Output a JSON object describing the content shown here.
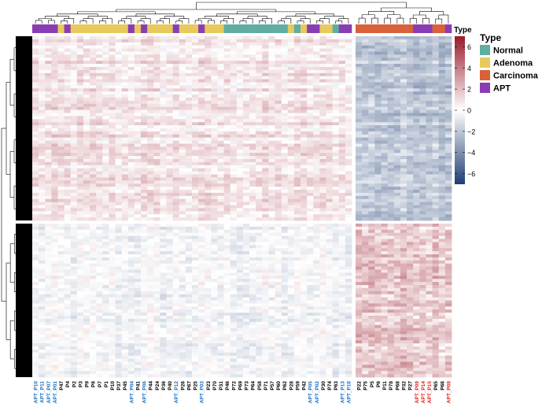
{
  "chart_data": {
    "type": "heatmap",
    "title": "",
    "annotation": {
      "title": "Type",
      "legend": [
        {
          "label": "Normal",
          "color": "#5fada3"
        },
        {
          "label": "Adenoma",
          "color": "#e8c95c"
        },
        {
          "label": "Carcinoma",
          "color": "#d9613a"
        },
        {
          "label": "APT",
          "color": "#8a3db3"
        }
      ]
    },
    "colorbar": {
      "title": "Type",
      "range": [
        -7,
        7
      ],
      "ticks": [
        "6",
        "4",
        "2",
        "0",
        "−2",
        "−4",
        "−6"
      ],
      "low_color": "#1e3d73",
      "mid_color": "#ffffff",
      "high_color": "#9b1b2a"
    },
    "column_groups": [
      {
        "name": "left-cluster",
        "columns": [
          {
            "label": "APT_P10",
            "type": "APT"
          },
          {
            "label": "APT_P11",
            "type": "APT"
          },
          {
            "label": "APT_P07",
            "type": "APT"
          },
          {
            "label": "APT_P01",
            "type": "APT"
          },
          {
            "label": "P47",
            "type": "Adenoma"
          },
          {
            "label": "P4",
            "type": "APT"
          },
          {
            "label": "P2",
            "type": "Adenoma"
          },
          {
            "label": "P3",
            "type": "Adenoma"
          },
          {
            "label": "P9",
            "type": "Adenoma"
          },
          {
            "label": "P8",
            "type": "Adenoma"
          },
          {
            "label": "P7",
            "type": "Adenoma"
          },
          {
            "label": "P1",
            "type": "Adenoma"
          },
          {
            "label": "P10",
            "type": "Adenoma"
          },
          {
            "label": "P37",
            "type": "Adenoma"
          },
          {
            "label": "P45",
            "type": "Adenoma"
          },
          {
            "label": "APT_P04",
            "type": "APT"
          },
          {
            "label": "P41",
            "type": "Adenoma"
          },
          {
            "label": "APT_P06",
            "type": "APT"
          },
          {
            "label": "P44",
            "type": "Adenoma"
          },
          {
            "label": "P24",
            "type": "Adenoma"
          },
          {
            "label": "P36",
            "type": "Adenoma"
          },
          {
            "label": "P40",
            "type": "Adenoma"
          },
          {
            "label": "APT_P12",
            "type": "APT"
          },
          {
            "label": "P26",
            "type": "Adenoma"
          },
          {
            "label": "P67",
            "type": "Adenoma"
          },
          {
            "label": "P25",
            "type": "Adenoma"
          },
          {
            "label": "APT_P03",
            "type": "APT"
          },
          {
            "label": "P23",
            "type": "Adenoma"
          },
          {
            "label": "P70",
            "type": "Adenoma"
          },
          {
            "label": "P31",
            "type": "Adenoma"
          },
          {
            "label": "P46",
            "type": "Normal"
          },
          {
            "label": "P72",
            "type": "Normal"
          },
          {
            "label": "P69",
            "type": "Normal"
          },
          {
            "label": "P73",
            "type": "Normal"
          },
          {
            "label": "P64",
            "type": "Normal"
          },
          {
            "label": "P58",
            "type": "Normal"
          },
          {
            "label": "P71",
            "type": "Normal"
          },
          {
            "label": "P57",
            "type": "Normal"
          },
          {
            "label": "P60",
            "type": "Normal"
          },
          {
            "label": "P62",
            "type": "Normal"
          },
          {
            "label": "P28",
            "type": "Adenoma"
          },
          {
            "label": "P59",
            "type": "Normal"
          },
          {
            "label": "P42",
            "type": "Adenoma"
          },
          {
            "label": "APT_P05",
            "type": "APT"
          },
          {
            "label": "APT_P02",
            "type": "APT"
          },
          {
            "label": "P30",
            "type": "Adenoma"
          },
          {
            "label": "P74",
            "type": "Adenoma"
          },
          {
            "label": "P63",
            "type": "Normal"
          },
          {
            "label": "APT_P13",
            "type": "APT"
          },
          {
            "label": "APT_P16",
            "type": "APT"
          }
        ]
      },
      {
        "name": "right-cluster",
        "columns": [
          {
            "label": "P22",
            "type": "Carcinoma"
          },
          {
            "label": "P75",
            "type": "Carcinoma"
          },
          {
            "label": "P5",
            "type": "Carcinoma"
          },
          {
            "label": "P6",
            "type": "Carcinoma"
          },
          {
            "label": "P11",
            "type": "Carcinoma"
          },
          {
            "label": "P78",
            "type": "Carcinoma"
          },
          {
            "label": "P68",
            "type": "Carcinoma"
          },
          {
            "label": "P32",
            "type": "Carcinoma"
          },
          {
            "label": "P27",
            "type": "Carcinoma"
          },
          {
            "label": "APT_P09",
            "type": "APT"
          },
          {
            "label": "APT_P14",
            "type": "APT"
          },
          {
            "label": "APT_P15",
            "type": "APT"
          },
          {
            "label": "P65",
            "type": "Carcinoma"
          },
          {
            "label": "P66",
            "type": "Carcinoma"
          },
          {
            "label": "APT_P08",
            "type": "APT"
          }
        ]
      }
    ],
    "row_groups": [
      {
        "name": "upper-row-cluster",
        "pattern": "left columns mildly positive, right cluster negative"
      },
      {
        "name": "lower-row-cluster",
        "pattern": "left columns near zero, right cluster positive"
      }
    ]
  }
}
